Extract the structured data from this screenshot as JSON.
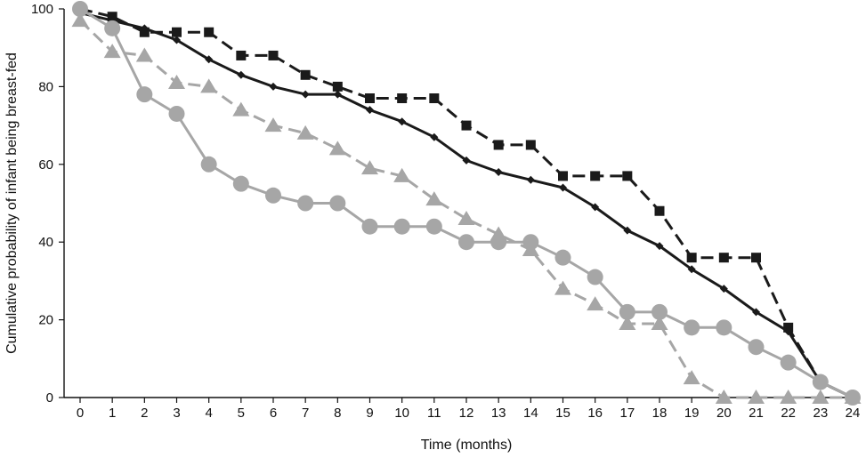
{
  "chart_data": {
    "type": "line",
    "title": "",
    "xlabel": "Time (months)",
    "ylabel": "Cumulative probability of infant being breast-fed",
    "xlim": [
      0,
      24
    ],
    "ylim": [
      0,
      100
    ],
    "x_ticks": [
      0,
      1,
      2,
      3,
      4,
      5,
      6,
      7,
      8,
      9,
      10,
      11,
      12,
      13,
      14,
      15,
      16,
      17,
      18,
      19,
      20,
      21,
      22,
      23,
      24
    ],
    "y_ticks": [
      0,
      20,
      40,
      60,
      80,
      100
    ],
    "grid": false,
    "legend": "none",
    "series": [
      {
        "marker": "square",
        "line_style": "dashed",
        "color": "#1a1a1a",
        "points": [
          [
            0,
            100
          ],
          [
            1,
            98
          ],
          [
            2,
            94
          ],
          [
            3,
            94
          ],
          [
            4,
            94
          ],
          [
            5,
            88
          ],
          [
            6,
            88
          ],
          [
            7,
            83
          ],
          [
            8,
            80
          ],
          [
            9,
            77
          ],
          [
            10,
            77
          ],
          [
            11,
            77
          ],
          [
            12,
            70
          ],
          [
            13,
            65
          ],
          [
            14,
            65
          ],
          [
            15,
            57
          ],
          [
            16,
            57
          ],
          [
            17,
            57
          ],
          [
            18,
            48
          ],
          [
            19,
            36
          ],
          [
            20,
            36
          ],
          [
            21,
            36
          ],
          [
            22,
            18
          ],
          [
            23,
            4
          ],
          [
            24,
            0
          ]
        ]
      },
      {
        "marker": "small-diamond",
        "line_style": "solid",
        "color": "#1a1a1a",
        "points": [
          [
            0,
            99
          ],
          [
            1,
            97
          ],
          [
            2,
            95
          ],
          [
            3,
            92
          ],
          [
            4,
            87
          ],
          [
            5,
            83
          ],
          [
            6,
            80
          ],
          [
            7,
            78
          ],
          [
            8,
            78
          ],
          [
            9,
            74
          ],
          [
            10,
            71
          ],
          [
            11,
            67
          ],
          [
            12,
            61
          ],
          [
            13,
            58
          ],
          [
            14,
            56
          ],
          [
            15,
            54
          ],
          [
            16,
            49
          ],
          [
            17,
            43
          ],
          [
            18,
            39
          ],
          [
            19,
            33
          ],
          [
            20,
            28
          ],
          [
            21,
            22
          ],
          [
            22,
            17
          ],
          [
            23,
            4
          ],
          [
            24,
            0
          ]
        ]
      },
      {
        "marker": "triangle",
        "line_style": "dashed",
        "color": "#a6a6a6",
        "points": [
          [
            0,
            97
          ],
          [
            1,
            89
          ],
          [
            2,
            88
          ],
          [
            3,
            81
          ],
          [
            4,
            80
          ],
          [
            5,
            74
          ],
          [
            6,
            70
          ],
          [
            7,
            68
          ],
          [
            8,
            64
          ],
          [
            9,
            59
          ],
          [
            10,
            57
          ],
          [
            11,
            51
          ],
          [
            12,
            46
          ],
          [
            13,
            42
          ],
          [
            14,
            38
          ],
          [
            15,
            28
          ],
          [
            16,
            24
          ],
          [
            17,
            19
          ],
          [
            18,
            19
          ],
          [
            19,
            5
          ],
          [
            20,
            0
          ],
          [
            21,
            0
          ],
          [
            22,
            0
          ],
          [
            23,
            0
          ],
          [
            24,
            0
          ]
        ]
      },
      {
        "marker": "circle",
        "line_style": "solid",
        "color": "#a6a6a6",
        "points": [
          [
            0,
            100
          ],
          [
            1,
            95
          ],
          [
            2,
            78
          ],
          [
            3,
            73
          ],
          [
            4,
            60
          ],
          [
            5,
            55
          ],
          [
            6,
            52
          ],
          [
            7,
            50
          ],
          [
            8,
            50
          ],
          [
            9,
            44
          ],
          [
            10,
            44
          ],
          [
            11,
            44
          ],
          [
            12,
            40
          ],
          [
            13,
            40
          ],
          [
            14,
            40
          ],
          [
            15,
            36
          ],
          [
            16,
            31
          ],
          [
            17,
            22
          ],
          [
            18,
            22
          ],
          [
            19,
            18
          ],
          [
            20,
            18
          ],
          [
            21,
            13
          ],
          [
            22,
            9
          ],
          [
            23,
            4
          ],
          [
            24,
            0
          ]
        ]
      }
    ]
  }
}
